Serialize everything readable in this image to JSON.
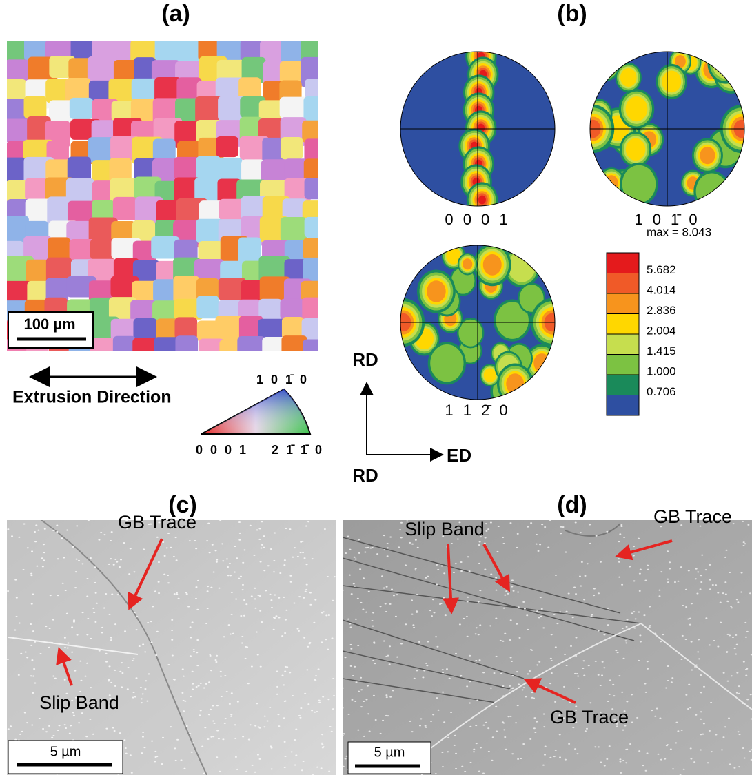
{
  "panels": {
    "a": {
      "label": "(a)",
      "scale_bar": "100 µm",
      "direction": "Extrusion Direction",
      "ipf_key": {
        "top": "1 0 1̄ 0",
        "left": "0 0 0 1",
        "right": "2 1̄ 1̄ 0"
      }
    },
    "b": {
      "label": "(b)",
      "pole_figures": [
        "0 0 0 1",
        "1 0 1̄ 0",
        "1 1 2̄ 0"
      ],
      "legend": [
        "max = 8.043",
        "5.682",
        "4.014",
        "2.836",
        "2.004",
        "1.415",
        "1.000",
        "0.706"
      ],
      "axes": {
        "rd_top": "RD",
        "ed": "ED",
        "rd_bottom": "RD"
      }
    },
    "c": {
      "label": "(c)",
      "gb_trace": "GB Trace",
      "slip_band": "Slip Band",
      "scale_bar": "5 µm"
    },
    "d": {
      "label": "(d)",
      "slip_band": "Slip Band",
      "gb_trace_top": "GB Trace",
      "gb_trace_bottom": "GB Trace",
      "scale_bar": "5 µm"
    }
  }
}
